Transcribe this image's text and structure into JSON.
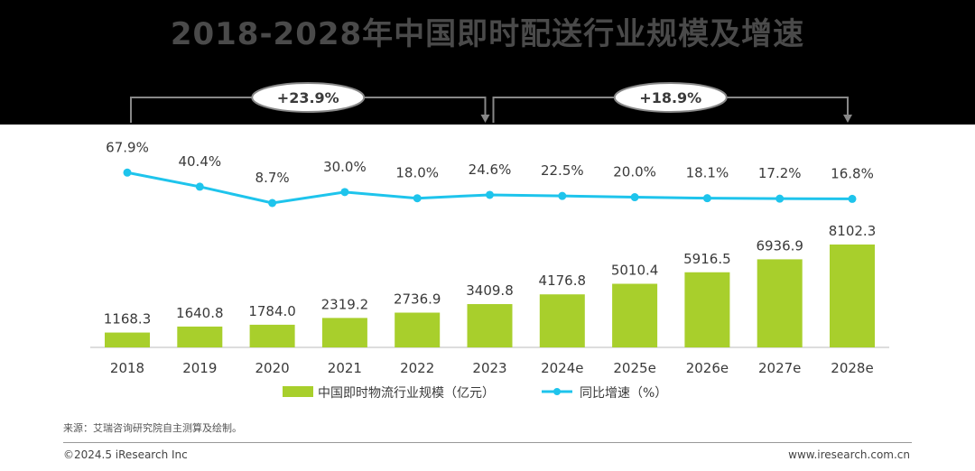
{
  "title": "2018-2028年中国即时配送行业规模及增速",
  "chart_data": {
    "type": "bar",
    "categories": [
      "2018",
      "2019",
      "2020",
      "2021",
      "2022",
      "2023",
      "2024e",
      "2025e",
      "2026e",
      "2027e",
      "2028e"
    ],
    "series": [
      {
        "name": "中国即时物流行业规模（亿元）",
        "type": "bar",
        "color": "#a8cf2c",
        "values": [
          1168.3,
          1640.8,
          1784.0,
          2319.2,
          2736.9,
          3409.8,
          4176.8,
          5010.4,
          5916.5,
          6936.9,
          8102.3
        ]
      },
      {
        "name": "同比增速（%）",
        "type": "line",
        "color": "#1ec4ec",
        "values": [
          67.9,
          40.4,
          8.7,
          30.0,
          18.0,
          24.6,
          22.5,
          20.0,
          18.1,
          17.2,
          16.8
        ]
      }
    ],
    "bar_labels": [
      "1168.3",
      "1640.8",
      "1784.0",
      "2319.2",
      "2736.9",
      "3409.8",
      "4176.8",
      "5010.4",
      "5916.5",
      "6936.9",
      "8102.3"
    ],
    "line_labels": [
      "67.9%",
      "40.4%",
      "8.7%",
      "30.0%",
      "18.0%",
      "24.6%",
      "22.5%",
      "20.0%",
      "18.1%",
      "17.2%",
      "16.8%"
    ],
    "annotations": [
      {
        "text": "+23.9%",
        "from": "2018",
        "to": "2023"
      },
      {
        "text": "+18.9%",
        "from": "2023",
        "to": "2028e"
      }
    ],
    "legend_position": "bottom"
  },
  "footer": {
    "source": "来源：艾瑞咨询研究院自主测算及绘制。",
    "copyright": "©2024.5 iResearch Inc",
    "website": "www.iresearch.com.cn"
  }
}
